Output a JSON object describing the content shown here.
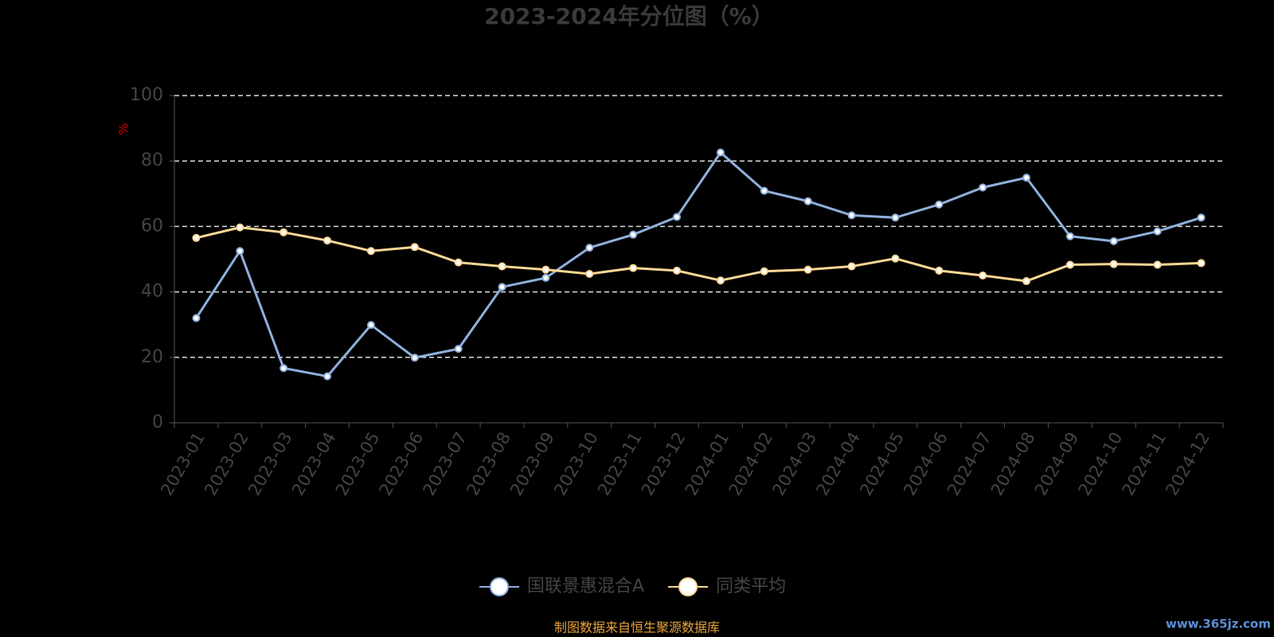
{
  "chart_data": {
    "type": "line",
    "title": "2023-2024年分位图（%）",
    "y_label": "%",
    "categories": [
      "2023-01",
      "2023-02",
      "2023-03",
      "2023-04",
      "2023-05",
      "2023-06",
      "2023-07",
      "2023-08",
      "2023-09",
      "2023-10",
      "2023-11",
      "2023-12",
      "2024-01",
      "2024-02",
      "2024-03",
      "2024-04",
      "2024-05",
      "2024-06",
      "2024-07",
      "2024-08",
      "2024-09",
      "2024-10",
      "2024-11",
      "2024-12"
    ],
    "series": [
      {
        "name": "国联景惠混合A",
        "color": "#8fb0dc",
        "values": [
          32,
          52.5,
          16.7,
          14.2,
          29.9,
          19.9,
          22.6,
          41.5,
          44.3,
          53.5,
          57.5,
          62.9,
          82.6,
          70.9,
          67.7,
          63.4,
          62.7,
          66.7,
          71.9,
          74.9,
          57.0,
          55.5,
          58.5,
          62.7
        ]
      },
      {
        "name": "同类平均",
        "color": "#fdd795",
        "values": [
          56.5,
          59.7,
          58.2,
          55.7,
          52.5,
          53.7,
          49.0,
          47.8,
          46.8,
          45.5,
          47.3,
          46.5,
          43.5,
          46.3,
          46.8,
          47.8,
          50.2,
          46.5,
          45.0,
          43.3,
          48.3,
          48.5,
          48.3,
          48.8
        ]
      }
    ],
    "ylim": [
      0,
      100
    ],
    "yticks": [
      0,
      20,
      40,
      60,
      80,
      100
    ],
    "grid": true,
    "legend": "bottom",
    "source": "制图数据来自恒生聚源数据库",
    "watermark": "www.365jz.com"
  }
}
